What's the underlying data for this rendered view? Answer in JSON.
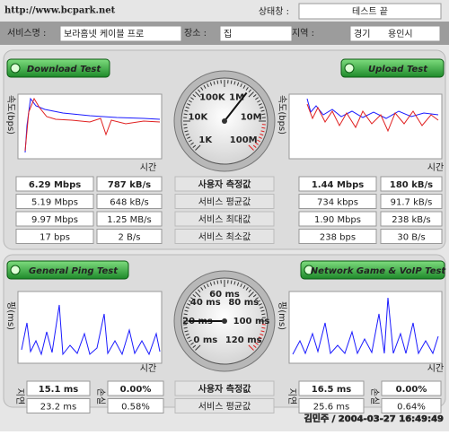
{
  "header": {
    "url": "http://www.bcpark.net",
    "status_label": "상태창 :",
    "status": "테스트 끝"
  },
  "info": {
    "service_label": "서비스명 :",
    "service": "보라홈넷 케이블 프로",
    "place_label": "장소 :",
    "place": "집",
    "region_label": "지역 :",
    "region": "경기",
    "city": "용인시"
  },
  "speed": {
    "download_button": "Download Test",
    "upload_button": "Upload Test",
    "y_label": "속도(bps)",
    "x_label": "시간",
    "gauge_labels": [
      "1K",
      "10K",
      "100K",
      "1M",
      "10M",
      "100M"
    ],
    "row_labels": [
      "사용자 측정값",
      "서비스 평균값",
      "서비스 최대값",
      "서비스 최소값"
    ],
    "download_rows": [
      [
        "6.29 Mbps",
        "787 kB/s"
      ],
      [
        "5.19 Mbps",
        "648 kB/s"
      ],
      [
        "9.97 Mbps",
        "1.25 MB/s"
      ],
      [
        "17 bps",
        "2 B/s"
      ]
    ],
    "upload_rows": [
      [
        "1.44 Mbps",
        "180 kB/s"
      ],
      [
        "734 kbps",
        "91.7 kB/s"
      ],
      [
        "1.90 Mbps",
        "238 kB/s"
      ],
      [
        "238 bps",
        "30 B/s"
      ]
    ]
  },
  "ping": {
    "ping_button": "General Ping Test",
    "game_button": "Network Game & VoIP Test",
    "y_label": "핑(ms)",
    "x_label": "시간",
    "gauge_labels": [
      "0 ms",
      "20 ms",
      "40 ms",
      "60 ms",
      "80 ms",
      "100 ms",
      "120 ms"
    ],
    "delay_label": "지연",
    "loss_label": "손실",
    "row_labels": [
      "사용자 측정값",
      "서비스 평균값"
    ],
    "general_rows": [
      [
        "15.1 ms",
        "0.00%"
      ],
      [
        "23.2 ms",
        "0.58%"
      ]
    ],
    "game_rows": [
      [
        "16.5 ms",
        "0.00%"
      ],
      [
        "25.6 ms",
        "0.64%"
      ]
    ]
  },
  "footer": "김민주 / 2004-03-27 16:49:49"
}
